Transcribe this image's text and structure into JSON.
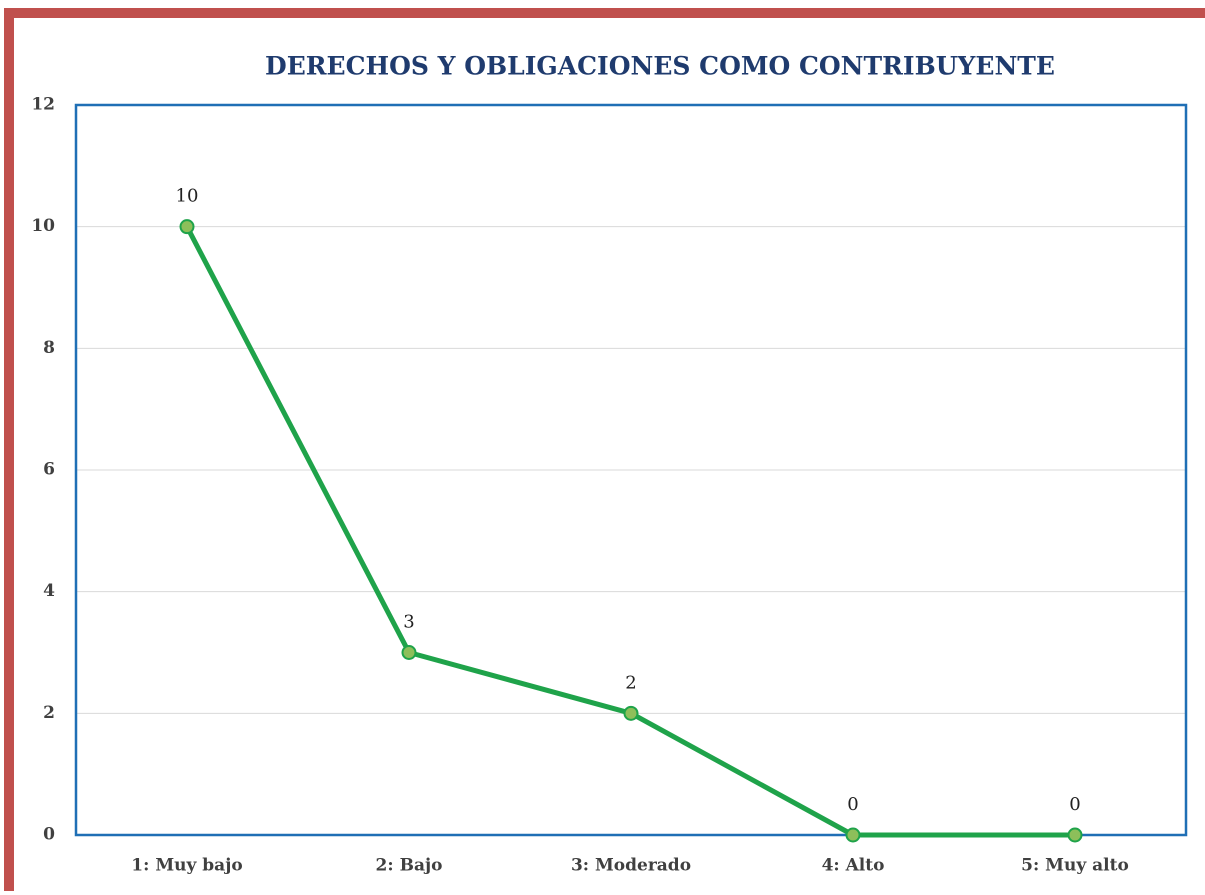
{
  "chart_data": {
    "type": "line",
    "title": "DERECHOS Y OBLIGACIONES COMO CONTRIBUYENTE",
    "categories": [
      "1: Muy bajo",
      "2: Bajo",
      "3: Moderado",
      "4: Alto",
      "5: Muy alto"
    ],
    "values": [
      10,
      3,
      2,
      0,
      0
    ],
    "color": "#1fa34a",
    "marker_color": "#8dbf5a",
    "ylim": [
      0,
      12
    ],
    "yticks": [
      0,
      2,
      4,
      6,
      8,
      10,
      12
    ],
    "grid": true
  }
}
